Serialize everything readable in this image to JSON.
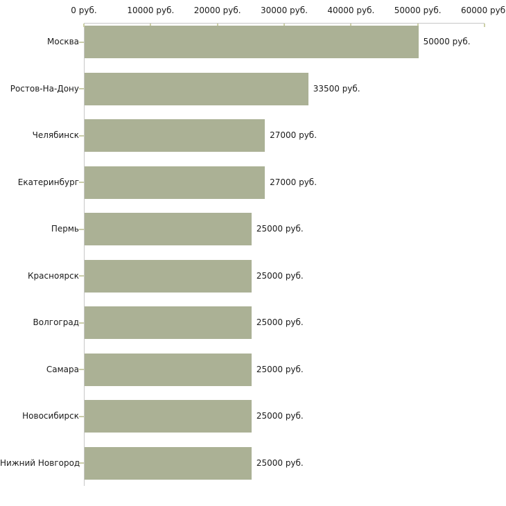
{
  "chart_data": {
    "type": "bar",
    "orientation": "horizontal",
    "title": "",
    "categories": [
      "Москва",
      "Ростов-На-Дону",
      "Челябинск",
      "Екатеринбург",
      "Пермь",
      "Красноярск",
      "Волгоград",
      "Самара",
      "Новосибирск",
      "Нижний Новгород"
    ],
    "values": [
      50000,
      33500,
      27000,
      27000,
      25000,
      25000,
      25000,
      25000,
      25000,
      25000
    ],
    "value_labels": [
      "50000 руб.",
      "33500 руб.",
      "27000 руб.",
      "27000 руб.",
      "25000 руб.",
      "25000 руб.",
      "25000 руб.",
      "25000 руб.",
      "25000 руб.",
      "25000 руб."
    ],
    "x_tick_values": [
      0,
      10000,
      20000,
      30000,
      40000,
      50000,
      60000
    ],
    "x_tick_labels": [
      "0 руб.",
      "10000 руб.",
      "20000 руб.",
      "30000 руб.",
      "40000 руб.",
      "50000 руб.",
      "60000 руб."
    ],
    "xlim": [
      0,
      60000
    ],
    "xlabel": "",
    "ylabel": "",
    "grid": false,
    "legend_position": "none",
    "colors": {
      "bar": "#abb195",
      "axis": "#c7c7c7",
      "tick_mark": "#cdd0a6",
      "category_tick_mark": "#c9cca8",
      "text": "#1a1a1a",
      "background": "#ffffff"
    }
  }
}
